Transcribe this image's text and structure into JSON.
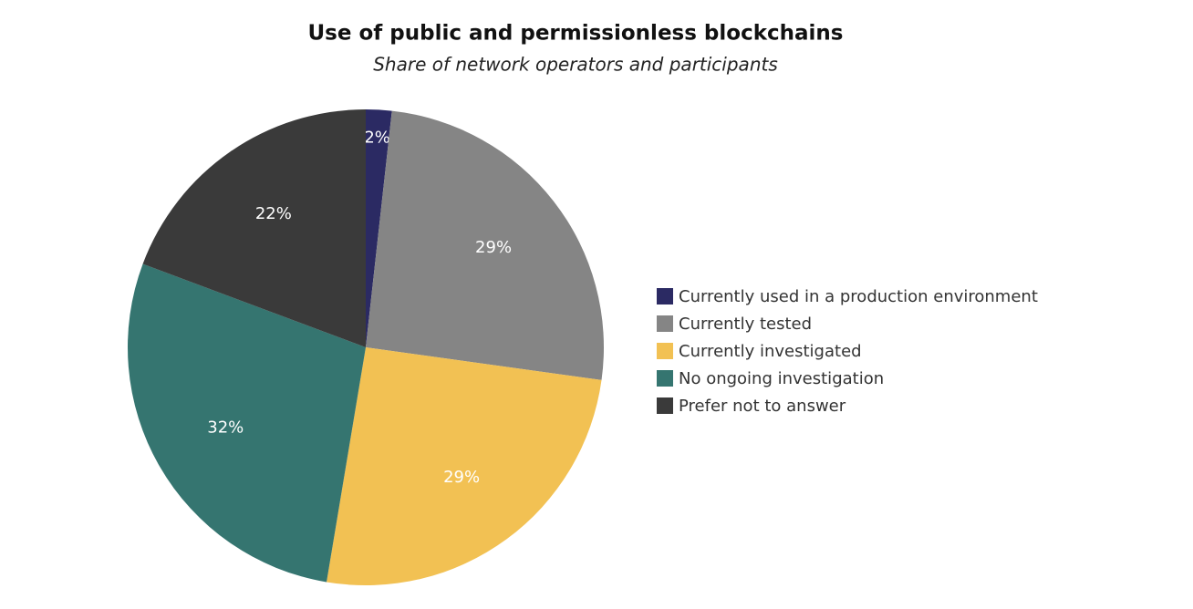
{
  "chart_data": {
    "type": "pie",
    "title": "Use of public and permissionless blockchains",
    "subtitle": "Share of network operators and participants",
    "categories": [
      "Currently used in a production environment",
      "Currently tested",
      "Currently investigated",
      "No ongoing investigation",
      "Prefer not to answer"
    ],
    "values": [
      2,
      29,
      29,
      32,
      22
    ],
    "value_labels": [
      "2%",
      "29%",
      "29%",
      "32%",
      "22%"
    ],
    "colors": [
      "#2b2a63",
      "#858585",
      "#f2c153",
      "#357570",
      "#3a3a3a"
    ],
    "legend": "right"
  }
}
